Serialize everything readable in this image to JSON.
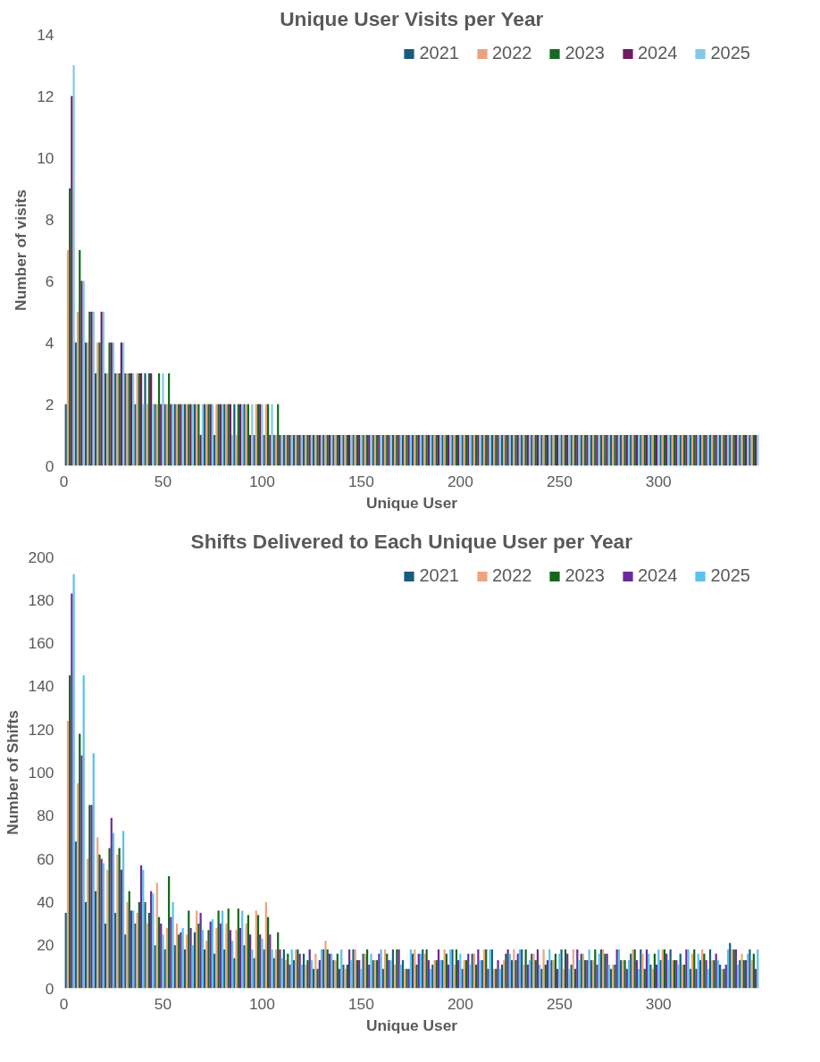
{
  "chart_data": [
    {
      "type": "bar",
      "title": "Unique User Visits per Year",
      "xlabel": "Unique User",
      "ylabel": "Number of visits",
      "xlim": [
        0,
        351
      ],
      "xticks": [
        0,
        50,
        100,
        150,
        200,
        250,
        300
      ],
      "ylim": [
        0,
        14
      ],
      "yticks": [
        0,
        2,
        4,
        6,
        8,
        10,
        12,
        14
      ],
      "grid": false,
      "legend": "top right",
      "series": [
        {
          "name": "2021",
          "color": "#1b5c7e",
          "x": [
            1,
            6,
            11,
            16,
            21,
            26,
            31,
            36,
            41,
            46,
            51,
            56,
            61,
            66,
            71,
            76,
            81,
            86,
            91,
            96,
            101,
            106,
            111,
            116,
            121,
            126,
            131,
            136,
            141,
            146,
            151,
            156,
            161,
            166,
            171,
            176,
            181,
            186,
            191,
            196,
            201,
            206,
            211,
            216,
            221,
            226,
            231,
            236,
            241,
            246,
            251,
            256,
            261,
            266,
            271,
            276,
            281,
            286,
            291,
            296,
            301,
            306,
            311,
            316,
            321,
            326,
            331,
            336,
            341,
            346
          ],
          "values": [
            2,
            4,
            4,
            3,
            3,
            3,
            3,
            2,
            3,
            2,
            2,
            2,
            2,
            2,
            2,
            1,
            2,
            2,
            2,
            1,
            1,
            1,
            1,
            1,
            1,
            1,
            1,
            1,
            1,
            1,
            1,
            1,
            1,
            1,
            1,
            1,
            1,
            1,
            1,
            1,
            1,
            1,
            1,
            1,
            1,
            1,
            1,
            1,
            1,
            1,
            1,
            1,
            1,
            1,
            1,
            1,
            1,
            1,
            1,
            1,
            1,
            1,
            1,
            1,
            1,
            1,
            1,
            1,
            1,
            1
          ]
        },
        {
          "name": "2022",
          "color": "#e9a27e",
          "x": [
            2,
            7,
            12,
            17,
            22,
            27,
            32,
            37,
            42,
            47,
            52,
            57,
            62,
            67,
            72,
            77,
            82,
            87,
            92,
            97,
            102,
            107,
            112,
            117,
            122,
            127,
            132,
            137,
            142,
            147,
            152,
            157,
            162,
            167,
            172,
            177,
            182,
            187,
            192,
            197,
            202,
            207,
            212,
            217,
            222,
            227,
            232,
            237,
            242,
            247,
            252,
            257,
            262,
            267,
            272,
            277,
            282,
            287,
            292,
            297,
            302,
            307,
            312,
            317,
            322,
            327,
            332,
            337,
            342,
            347
          ],
          "values": [
            7,
            5,
            4,
            4,
            3,
            3,
            3,
            3,
            2,
            2,
            2,
            2,
            2,
            2,
            2,
            2,
            2,
            1,
            2,
            2,
            2,
            1,
            1,
            1,
            1,
            1,
            1,
            1,
            1,
            1,
            1,
            1,
            1,
            1,
            1,
            1,
            1,
            1,
            1,
            1,
            1,
            1,
            1,
            1,
            1,
            1,
            1,
            1,
            1,
            1,
            1,
            1,
            1,
            1,
            1,
            1,
            1,
            1,
            1,
            1,
            1,
            1,
            1,
            1,
            1,
            1,
            1,
            1,
            1,
            1
          ]
        },
        {
          "name": "2023",
          "color": "#166a20",
          "x": [
            3,
            8,
            13,
            18,
            23,
            28,
            33,
            38,
            43,
            48,
            53,
            58,
            63,
            68,
            73,
            78,
            83,
            88,
            93,
            98,
            103,
            108,
            113,
            118,
            123,
            128,
            133,
            138,
            143,
            148,
            153,
            158,
            163,
            168,
            173,
            178,
            183,
            188,
            193,
            198,
            203,
            208,
            213,
            218,
            223,
            228,
            233,
            238,
            243,
            248,
            253,
            258,
            263,
            268,
            273,
            278,
            283,
            288,
            293,
            298,
            303,
            308,
            313,
            318,
            323,
            328,
            333,
            338,
            343,
            348
          ],
          "values": [
            9,
            7,
            5,
            4,
            4,
            3,
            3,
            3,
            3,
            3,
            3,
            2,
            2,
            2,
            2,
            2,
            2,
            2,
            2,
            2,
            2,
            2,
            1,
            1,
            1,
            1,
            1,
            1,
            1,
            1,
            1,
            1,
            1,
            1,
            1,
            1,
            1,
            1,
            1,
            1,
            1,
            1,
            1,
            1,
            1,
            1,
            1,
            1,
            1,
            1,
            1,
            1,
            1,
            1,
            1,
            1,
            1,
            1,
            1,
            1,
            1,
            1,
            1,
            1,
            1,
            1,
            1,
            1,
            1,
            1
          ]
        },
        {
          "name": "2024",
          "color": "#6e1b63",
          "x": [
            4,
            9,
            14,
            19,
            24,
            29,
            34,
            39,
            44,
            49,
            54,
            59,
            64,
            69,
            74,
            79,
            84,
            89,
            94,
            99,
            104,
            109,
            114,
            119,
            124,
            129,
            134,
            139,
            144,
            149,
            154,
            159,
            164,
            169,
            174,
            179,
            184,
            189,
            194,
            199,
            204,
            209,
            214,
            219,
            224,
            229,
            234,
            239,
            244,
            249,
            254,
            259,
            264,
            269,
            274,
            279,
            284,
            289,
            294,
            299,
            304,
            309,
            314,
            319,
            324,
            329,
            334,
            339,
            344,
            349
          ],
          "values": [
            12,
            6,
            5,
            5,
            4,
            4,
            3,
            3,
            3,
            2,
            2,
            2,
            2,
            1,
            2,
            2,
            2,
            2,
            1,
            2,
            1,
            1,
            1,
            1,
            1,
            1,
            1,
            1,
            1,
            1,
            1,
            1,
            1,
            1,
            1,
            1,
            1,
            1,
            1,
            1,
            1,
            1,
            1,
            1,
            1,
            1,
            1,
            1,
            1,
            1,
            1,
            1,
            1,
            1,
            1,
            1,
            1,
            1,
            1,
            1,
            1,
            1,
            1,
            1,
            1,
            1,
            1,
            1,
            1,
            1
          ]
        },
        {
          "name": "2025",
          "color": "#84c8e6",
          "x": [
            5,
            10,
            15,
            20,
            25,
            30,
            35,
            40,
            45,
            50,
            55,
            60,
            65,
            70,
            75,
            80,
            85,
            90,
            95,
            100,
            105,
            110,
            115,
            120,
            125,
            130,
            135,
            140,
            145,
            150,
            155,
            160,
            165,
            170,
            175,
            180,
            185,
            190,
            195,
            200,
            205,
            210,
            215,
            220,
            225,
            230,
            235,
            240,
            245,
            250,
            255,
            260,
            265,
            270,
            275,
            280,
            285,
            290,
            295,
            300,
            305,
            310,
            315,
            320,
            325,
            330,
            335,
            340,
            345,
            350
          ],
          "values": [
            13,
            6,
            5,
            5,
            4,
            4,
            3,
            2,
            2,
            3,
            2,
            2,
            2,
            2,
            2,
            2,
            1,
            2,
            2,
            2,
            2,
            1,
            1,
            1,
            1,
            1,
            1,
            1,
            1,
            1,
            1,
            1,
            1,
            1,
            1,
            1,
            1,
            1,
            1,
            1,
            1,
            1,
            1,
            1,
            1,
            1,
            1,
            1,
            1,
            1,
            1,
            1,
            1,
            1,
            1,
            1,
            1,
            1,
            1,
            1,
            1,
            1,
            1,
            1,
            1,
            1,
            1,
            1,
            1,
            1
          ]
        }
      ]
    },
    {
      "type": "bar",
      "title": "Shifts Delivered to Each Unique User per Year",
      "xlabel": "Unique User",
      "ylabel": "Number of Shifts",
      "xlim": [
        0,
        351
      ],
      "xticks": [
        0,
        50,
        100,
        150,
        200,
        250,
        300
      ],
      "ylim": [
        0,
        200
      ],
      "yticks": [
        0,
        20,
        40,
        60,
        80,
        100,
        120,
        140,
        160,
        180,
        200
      ],
      "grid": false,
      "legend": "top right",
      "series": [
        {
          "name": "2021",
          "color": "#185c7e",
          "x": [
            1,
            6,
            11,
            16,
            21,
            26,
            31,
            36,
            41,
            46,
            51,
            56,
            61,
            66,
            71,
            76,
            81,
            86,
            91,
            96,
            101,
            106,
            111,
            116,
            121,
            126,
            131,
            136,
            141,
            146,
            151,
            156,
            161,
            166,
            171,
            176,
            181,
            186,
            191,
            196,
            201,
            206,
            211,
            216,
            221,
            226,
            231,
            236,
            241,
            246,
            251,
            256,
            261,
            266,
            271,
            276,
            281,
            286,
            291,
            296,
            301,
            306,
            311,
            316,
            321,
            326,
            331,
            336,
            341,
            346
          ],
          "values": [
            35,
            68,
            40,
            45,
            30,
            35,
            25,
            30,
            40,
            20,
            18,
            20,
            18,
            26,
            18,
            16,
            18,
            14,
            20,
            14,
            18,
            14,
            18,
            13,
            16,
            9,
            18,
            13,
            11,
            18,
            16,
            13,
            9,
            18,
            13,
            16,
            18,
            11,
            13,
            18,
            9,
            16,
            13,
            18,
            11,
            13,
            18,
            16,
            9,
            13,
            18,
            11,
            16,
            13,
            18,
            9,
            13,
            16,
            18,
            11,
            13,
            18,
            16,
            9,
            13,
            18,
            11,
            21,
            13,
            18
          ]
        },
        {
          "name": "2022",
          "color": "#eda47f",
          "x": [
            2,
            7,
            12,
            17,
            22,
            27,
            32,
            37,
            42,
            47,
            52,
            57,
            62,
            67,
            72,
            77,
            82,
            87,
            92,
            97,
            102,
            107,
            112,
            117,
            122,
            127,
            132,
            137,
            142,
            147,
            152,
            157,
            162,
            167,
            172,
            177,
            182,
            187,
            192,
            197,
            202,
            207,
            212,
            217,
            222,
            227,
            232,
            237,
            242,
            247,
            252,
            257,
            262,
            267,
            272,
            277,
            282,
            287,
            292,
            297,
            302,
            307,
            312,
            317,
            322,
            327,
            332,
            337,
            342,
            347
          ],
          "values": [
            124,
            95,
            60,
            70,
            55,
            62,
            40,
            35,
            30,
            49,
            28,
            30,
            25,
            36,
            22,
            28,
            30,
            27,
            30,
            36,
            40,
            18,
            13,
            18,
            11,
            16,
            22,
            13,
            9,
            18,
            16,
            13,
            18,
            11,
            9,
            18,
            16,
            13,
            18,
            11,
            13,
            16,
            18,
            9,
            13,
            18,
            11,
            16,
            18,
            13,
            9,
            18,
            16,
            13,
            18,
            11,
            13,
            18,
            16,
            9,
            18,
            13,
            11,
            16,
            18,
            13,
            9,
            18,
            16,
            13
          ]
        },
        {
          "name": "2023",
          "color": "#17661c",
          "x": [
            3,
            8,
            13,
            18,
            23,
            28,
            33,
            38,
            43,
            48,
            53,
            58,
            63,
            68,
            73,
            78,
            83,
            88,
            93,
            98,
            103,
            108,
            113,
            118,
            123,
            128,
            133,
            138,
            143,
            148,
            153,
            158,
            163,
            168,
            173,
            178,
            183,
            188,
            193,
            198,
            203,
            208,
            213,
            218,
            223,
            228,
            233,
            238,
            243,
            248,
            253,
            258,
            263,
            268,
            273,
            278,
            283,
            288,
            293,
            298,
            303,
            308,
            313,
            318,
            323,
            328,
            333,
            338,
            343,
            348
          ],
          "values": [
            145,
            118,
            85,
            62,
            65,
            65,
            45,
            40,
            35,
            33,
            52,
            25,
            36,
            30,
            27,
            36,
            37,
            37,
            34,
            34,
            33,
            26,
            16,
            18,
            13,
            9,
            18,
            16,
            11,
            13,
            18,
            13,
            16,
            18,
            9,
            11,
            18,
            13,
            16,
            18,
            13,
            11,
            18,
            9,
            16,
            13,
            18,
            13,
            11,
            16,
            18,
            9,
            13,
            18,
            16,
            11,
            13,
            18,
            9,
            16,
            18,
            13,
            11,
            18,
            16,
            13,
            9,
            18,
            13,
            16
          ]
        },
        {
          "name": "2024",
          "color": "#6b2b9c",
          "x": [
            4,
            9,
            14,
            19,
            24,
            29,
            34,
            39,
            44,
            49,
            54,
            59,
            64,
            69,
            74,
            79,
            84,
            89,
            94,
            99,
            104,
            109,
            114,
            119,
            124,
            129,
            134,
            139,
            144,
            149,
            154,
            159,
            164,
            169,
            174,
            179,
            184,
            189,
            194,
            199,
            204,
            209,
            214,
            219,
            224,
            229,
            234,
            239,
            244,
            249,
            254,
            259,
            264,
            269,
            274,
            279,
            284,
            289,
            294,
            299,
            304,
            309,
            314,
            319,
            324,
            329,
            334,
            339,
            344,
            349
          ],
          "values": [
            183,
            108,
            85,
            60,
            79,
            55,
            36,
            57,
            45,
            30,
            33,
            26,
            28,
            35,
            31,
            30,
            27,
            28,
            25,
            25,
            25,
            18,
            11,
            16,
            18,
            13,
            16,
            9,
            18,
            13,
            11,
            16,
            13,
            18,
            9,
            16,
            13,
            18,
            11,
            13,
            16,
            18,
            9,
            13,
            18,
            16,
            11,
            18,
            13,
            9,
            16,
            18,
            13,
            11,
            16,
            18,
            9,
            13,
            18,
            11,
            16,
            13,
            18,
            9,
            13,
            16,
            11,
            18,
            13,
            9
          ]
        },
        {
          "name": "2025",
          "color": "#5cc1ea",
          "x": [
            5,
            10,
            15,
            20,
            25,
            30,
            35,
            40,
            45,
            50,
            55,
            60,
            65,
            70,
            75,
            80,
            85,
            90,
            95,
            100,
            105,
            110,
            115,
            120,
            125,
            130,
            135,
            140,
            145,
            150,
            155,
            160,
            165,
            170,
            175,
            180,
            185,
            190,
            195,
            200,
            205,
            210,
            215,
            220,
            225,
            230,
            235,
            240,
            245,
            250,
            255,
            260,
            265,
            270,
            275,
            280,
            285,
            290,
            295,
            300,
            305,
            310,
            315,
            320,
            325,
            330,
            335,
            340,
            345,
            350
          ],
          "values": [
            192,
            145,
            109,
            58,
            72,
            73,
            36,
            55,
            44,
            25,
            40,
            28,
            20,
            27,
            32,
            36,
            22,
            36,
            18,
            23,
            18,
            14,
            18,
            11,
            13,
            18,
            16,
            18,
            13,
            9,
            16,
            18,
            13,
            11,
            18,
            16,
            9,
            13,
            18,
            16,
            11,
            13,
            18,
            9,
            16,
            18,
            13,
            11,
            18,
            16,
            9,
            13,
            18,
            16,
            11,
            18,
            13,
            9,
            16,
            18,
            13,
            11,
            18,
            16,
            9,
            13,
            18,
            11,
            16,
            18
          ]
        }
      ]
    }
  ]
}
